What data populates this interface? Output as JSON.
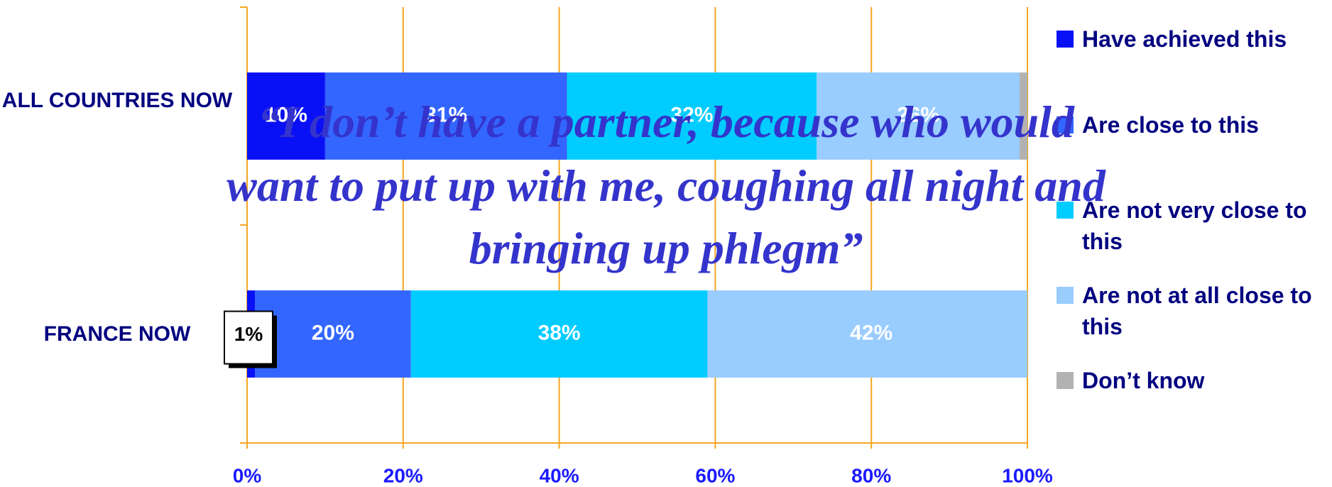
{
  "chart_data": {
    "type": "stacked-bar-horizontal",
    "categories": [
      "ALL COUNTRIES NOW",
      "FRANCE NOW"
    ],
    "series": [
      {
        "name": "Have achieved this",
        "color": "#0a10f5",
        "values": [
          10,
          1
        ],
        "value_labels": [
          "10%",
          "1%"
        ]
      },
      {
        "name": "Are close to this",
        "color": "#3366ff",
        "values": [
          31,
          20
        ],
        "value_labels": [
          "31%",
          "20%"
        ]
      },
      {
        "name": "Are not very close to this",
        "color": "#00ccff",
        "values": [
          32,
          38
        ],
        "value_labels": [
          "32%",
          "38%"
        ]
      },
      {
        "name": "Are not at all close to this",
        "color": "#99ccff",
        "values": [
          26,
          42
        ],
        "value_labels": [
          "26%",
          "42%"
        ]
      },
      {
        "name": "Don’t know",
        "color": "#b2b2b2",
        "values": [
          1,
          null
        ],
        "value_labels": [
          null,
          null
        ]
      }
    ],
    "xlim": [
      0,
      100
    ],
    "xticks": [
      {
        "value": 0,
        "label": "0%"
      },
      {
        "value": 20,
        "label": "20%"
      },
      {
        "value": 40,
        "label": "40%"
      },
      {
        "value": 60,
        "label": "60%"
      },
      {
        "value": 80,
        "label": "80%"
      },
      {
        "value": 100,
        "label": "100%"
      }
    ],
    "grid": true,
    "legend": "right",
    "annotation": [
      "“I don’t have a partner, because who would",
      "want to put up with me, coughing all night and",
      "bringing up phlegm”"
    ]
  }
}
